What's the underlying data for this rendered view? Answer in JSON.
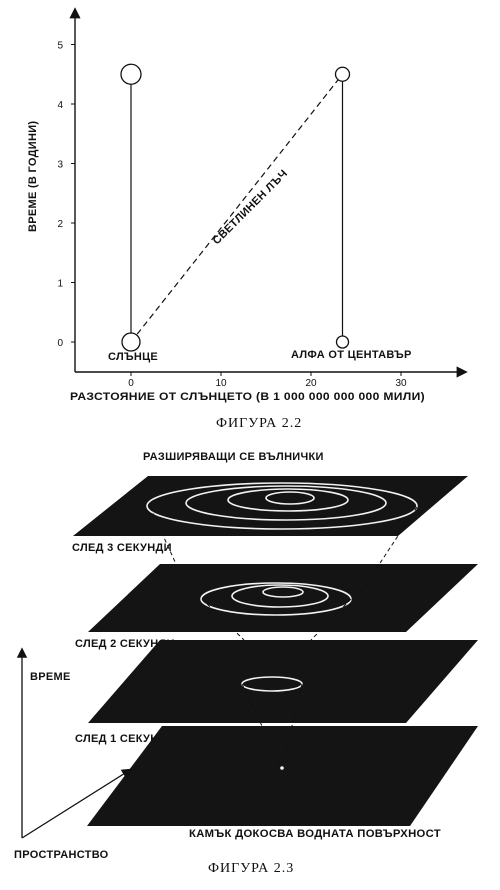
{
  "figure_2_2": {
    "caption": "ФИГУРА 2.2",
    "y_axis_label": "ВРЕМЕ (В ГОДИНИ)",
    "x_axis_label": "РАЗСТОЯНИЕ ОТ СЛЪНЦЕТО (В 1 000 000 000 000 МИЛИ)",
    "y_ticks": [
      "0",
      "1",
      "2",
      "3",
      "4",
      "5"
    ],
    "x_ticks": [
      "0",
      "10",
      "20",
      "30"
    ],
    "sun_label": "СЛЪНЦЕ",
    "alpha_label": "АЛФА ОТ ЦЕНТАВЪР",
    "light_ray_label": "СВЕТЛИНЕН ЛЪЧ"
  },
  "figure_2_3": {
    "caption": "ФИГУРА 2.3",
    "title": "РАЗШИРЯВАЩИ СЕ ВЪЛНИЧКИ",
    "plane_labels": [
      "СЛЕД 3 СЕКУНДИ",
      "СЛЕД 2 СЕКУНДИ",
      "СЛЕД 1 СЕКУНДА",
      "КАМЪК ДОКОСВА ВОДНАТА ПОВЪРХНОСТ"
    ],
    "time_axis_label": "ВРЕМЕ",
    "space_axis_label": "ПРОСТРАНСТВО"
  },
  "chart_data": {
    "type": "line",
    "xlabel": "РАЗСТОЯНИЕ ОТ СЛЪНЦЕТО (В 1 000 000 000 000 МИЛИ)",
    "ylabel": "ВРЕМЕ (В ГОДИНИ)",
    "xlim": [
      0,
      30
    ],
    "ylim": [
      0,
      5
    ],
    "series": [
      {
        "name": "СЛЪНЦЕ",
        "x": [
          0,
          0
        ],
        "y": [
          0,
          4.5
        ]
      },
      {
        "name": "АЛФА ОТ ЦЕНТАВЪР",
        "x": [
          23.5,
          23.5
        ],
        "y": [
          0,
          4.5
        ]
      },
      {
        "name": "СВЕТЛИНЕН ЛЪЧ",
        "x": [
          0,
          23.5
        ],
        "y": [
          0,
          4.5
        ]
      }
    ]
  }
}
